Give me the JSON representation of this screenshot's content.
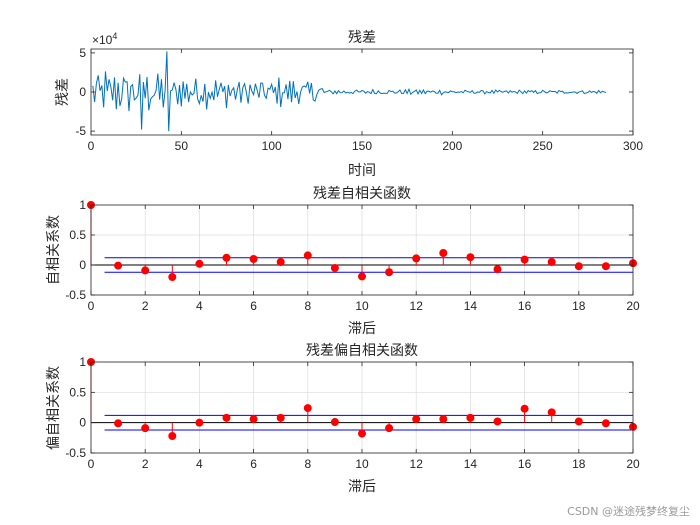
{
  "watermark": "CSDN @迷途残梦终复尘",
  "chart_data": [
    {
      "type": "line",
      "title": "残差",
      "xlabel": "时间",
      "ylabel": "残差",
      "exponent_base": "×10",
      "exponent_power": "4",
      "xlim": [
        0,
        300
      ],
      "ylim": [
        -55000,
        55000
      ],
      "xticks": [
        "0",
        "50",
        "100",
        "150",
        "200",
        "250",
        "300"
      ],
      "yticks": [
        "-5",
        "0",
        "5"
      ],
      "line_color": "#0072BD",
      "series_envelope": {
        "x_start": 1,
        "x_end": 285,
        "segments": [
          {
            "x_from": 1,
            "x_to": 40,
            "amplitude": 30000
          },
          {
            "x_from": 40,
            "x_to": 45,
            "amplitude": 50000
          },
          {
            "x_from": 45,
            "x_to": 80,
            "amplitude": 22000
          },
          {
            "x_from": 80,
            "x_to": 128,
            "amplitude": 18000
          },
          {
            "x_from": 128,
            "x_to": 200,
            "amplitude": 3500
          },
          {
            "x_from": 200,
            "x_to": 285,
            "amplitude": 2500
          }
        ]
      }
    },
    {
      "type": "stem",
      "title": "残差自相关函数",
      "xlabel": "滞后",
      "ylabel": "自相关系数",
      "xlim": [
        0,
        20
      ],
      "ylim": [
        -0.5,
        1
      ],
      "xticks": [
        "0",
        "2",
        "4",
        "6",
        "8",
        "10",
        "12",
        "14",
        "16",
        "18",
        "20"
      ],
      "yticks": [
        "-0.5",
        "0",
        "0.5",
        "1"
      ],
      "lags": [
        0,
        1,
        2,
        3,
        4,
        5,
        6,
        7,
        8,
        9,
        10,
        11,
        12,
        13,
        14,
        15,
        16,
        17,
        18,
        19,
        20
      ],
      "values": [
        1.0,
        -0.01,
        -0.09,
        -0.2,
        0.02,
        0.12,
        0.1,
        0.05,
        0.16,
        -0.05,
        -0.19,
        -0.12,
        0.11,
        0.2,
        0.13,
        -0.07,
        0.09,
        0.05,
        -0.02,
        -0.02,
        0.03
      ],
      "confidence_bound": 0.12,
      "marker_color": "#FF0000",
      "bound_color": "#0000FF"
    },
    {
      "type": "stem",
      "title": "残差偏自相关函数",
      "xlabel": "滞后",
      "ylabel": "偏自相关系数",
      "xlim": [
        0,
        20
      ],
      "ylim": [
        -0.5,
        1
      ],
      "xticks": [
        "0",
        "2",
        "4",
        "6",
        "8",
        "10",
        "12",
        "14",
        "16",
        "18",
        "20"
      ],
      "yticks": [
        "-0.5",
        "0",
        "0.5",
        "1"
      ],
      "lags": [
        0,
        1,
        2,
        3,
        4,
        5,
        6,
        7,
        8,
        9,
        10,
        11,
        12,
        13,
        14,
        15,
        16,
        17,
        18,
        19,
        20
      ],
      "values": [
        1.0,
        -0.01,
        -0.09,
        -0.22,
        0.0,
        0.08,
        0.06,
        0.08,
        0.24,
        0.01,
        -0.18,
        -0.09,
        0.06,
        0.06,
        0.08,
        0.02,
        0.23,
        0.17,
        0.02,
        -0.01,
        -0.07
      ],
      "confidence_bound": 0.12,
      "marker_color": "#FF0000",
      "bound_color": "#0000FF"
    }
  ]
}
